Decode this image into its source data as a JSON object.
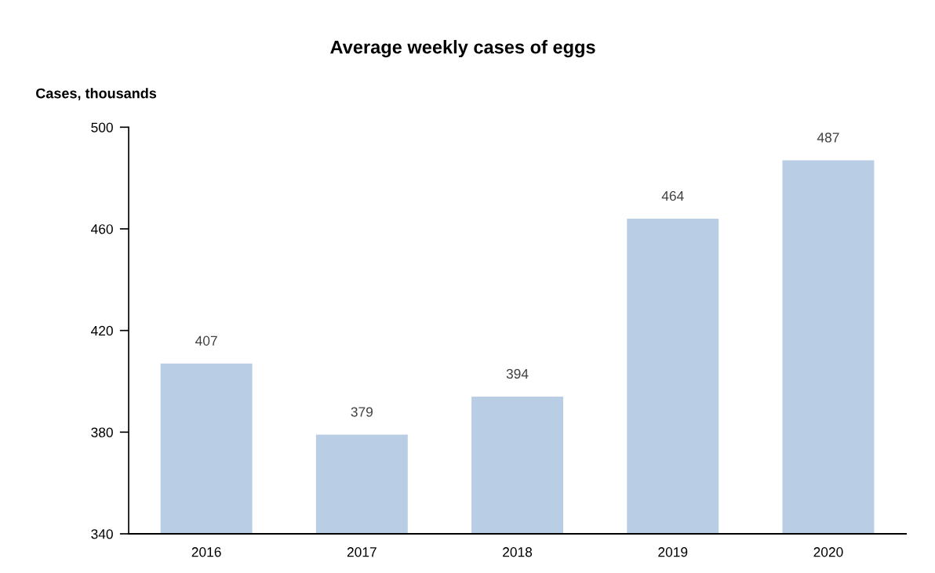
{
  "chart_data": {
    "type": "bar",
    "title": "Average weekly cases of eggs",
    "ylabel": "Cases, thousands",
    "categories": [
      "2016",
      "2017",
      "2018",
      "2019",
      "2020"
    ],
    "values": [
      407,
      379,
      394,
      464,
      487
    ],
    "color": "#b9cde5",
    "ylim": [
      340,
      500
    ],
    "yticks": [
      340,
      380,
      420,
      460,
      500
    ],
    "data_labels": true,
    "grid": false,
    "legend": false
  }
}
